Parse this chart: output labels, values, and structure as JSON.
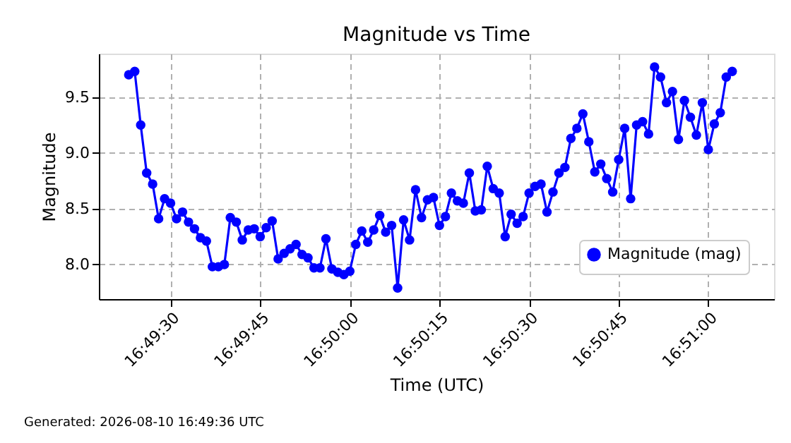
{
  "chart_data": {
    "type": "line",
    "title": "Magnitude vs Time",
    "xlabel": "Time (UTC)",
    "ylabel": "Magnitude",
    "annotations": [
      "Generated: 2026-08-10 16:49:36 UTC"
    ],
    "x": [
      "2026-08-10T16:49:23",
      "2026-08-10T16:49:24",
      "2026-08-10T16:49:25",
      "2026-08-10T16:49:26",
      "2026-08-10T16:49:27",
      "2026-08-10T16:49:28",
      "2026-08-10T16:49:29",
      "2026-08-10T16:49:30",
      "2026-08-10T16:49:31",
      "2026-08-10T16:49:32",
      "2026-08-10T16:49:33",
      "2026-08-10T16:49:34",
      "2026-08-10T16:49:35",
      "2026-08-10T16:49:36",
      "2026-08-10T16:49:37",
      "2026-08-10T16:49:38",
      "2026-08-10T16:49:39",
      "2026-08-10T16:49:40",
      "2026-08-10T16:49:41",
      "2026-08-10T16:49:42",
      "2026-08-10T16:49:43",
      "2026-08-10T16:49:44",
      "2026-08-10T16:49:45",
      "2026-08-10T16:49:46",
      "2026-08-10T16:49:47",
      "2026-08-10T16:49:48",
      "2026-08-10T16:49:49",
      "2026-08-10T16:49:50",
      "2026-08-10T16:49:51",
      "2026-08-10T16:49:52",
      "2026-08-10T16:49:53",
      "2026-08-10T16:49:54",
      "2026-08-10T16:49:55",
      "2026-08-10T16:49:56",
      "2026-08-10T16:49:57",
      "2026-08-10T16:49:58",
      "2026-08-10T16:49:59",
      "2026-08-10T16:50:00",
      "2026-08-10T16:50:01",
      "2026-08-10T16:50:02",
      "2026-08-10T16:50:03",
      "2026-08-10T16:50:04",
      "2026-08-10T16:50:05",
      "2026-08-10T16:50:06",
      "2026-08-10T16:50:07",
      "2026-08-10T16:50:08",
      "2026-08-10T16:50:09",
      "2026-08-10T16:50:10",
      "2026-08-10T16:50:11",
      "2026-08-10T16:50:12",
      "2026-08-10T16:50:13",
      "2026-08-10T16:50:14",
      "2026-08-10T16:50:15",
      "2026-08-10T16:50:16",
      "2026-08-10T16:50:17",
      "2026-08-10T16:50:18",
      "2026-08-10T16:50:19",
      "2026-08-10T16:50:20",
      "2026-08-10T16:50:21",
      "2026-08-10T16:50:22",
      "2026-08-10T16:50:23",
      "2026-08-10T16:50:24",
      "2026-08-10T16:50:25",
      "2026-08-10T16:50:26",
      "2026-08-10T16:50:27",
      "2026-08-10T16:50:28",
      "2026-08-10T16:50:29",
      "2026-08-10T16:50:30",
      "2026-08-10T16:50:31",
      "2026-08-10T16:50:32",
      "2026-08-10T16:50:33",
      "2026-08-10T16:50:34",
      "2026-08-10T16:50:35",
      "2026-08-10T16:50:36",
      "2026-08-10T16:50:37",
      "2026-08-10T16:50:38",
      "2026-08-10T16:50:39",
      "2026-08-10T16:50:40",
      "2026-08-10T16:50:41",
      "2026-08-10T16:50:42",
      "2026-08-10T16:50:43",
      "2026-08-10T16:50:44",
      "2026-08-10T16:50:45",
      "2026-08-10T16:50:46",
      "2026-08-10T16:50:47",
      "2026-08-10T16:50:48",
      "2026-08-10T16:50:49",
      "2026-08-10T16:50:50",
      "2026-08-10T16:50:51",
      "2026-08-10T16:50:52",
      "2026-08-10T16:50:53",
      "2026-08-10T16:50:54",
      "2026-08-10T16:50:55",
      "2026-08-10T16:50:56",
      "2026-08-10T16:50:57",
      "2026-08-10T16:50:58",
      "2026-08-10T16:50:59",
      "2026-08-10T16:51:00",
      "2026-08-10T16:51:01",
      "2026-08-10T16:51:02",
      "2026-08-10T16:51:03",
      "2026-08-10T16:51:04"
    ],
    "series": [
      {
        "name": "Magnitude (mag)",
        "color": "#0000ff",
        "values": [
          9.7,
          9.73,
          9.25,
          8.82,
          8.72,
          8.41,
          8.59,
          8.55,
          8.41,
          8.47,
          8.38,
          8.32,
          8.24,
          8.21,
          7.98,
          7.98,
          8.0,
          8.42,
          8.38,
          8.22,
          8.31,
          8.32,
          8.25,
          8.33,
          8.39,
          8.05,
          8.1,
          8.14,
          8.18,
          8.09,
          8.06,
          7.97,
          7.97,
          8.23,
          7.96,
          7.93,
          7.91,
          7.94,
          8.18,
          8.3,
          8.2,
          8.31,
          8.44,
          8.29,
          8.35,
          7.79,
          8.4,
          8.22,
          8.67,
          8.42,
          8.58,
          8.6,
          8.35,
          8.43,
          8.64,
          8.57,
          8.55,
          8.82,
          8.48,
          8.49,
          8.88,
          8.68,
          8.64,
          8.25,
          8.45,
          8.37,
          8.43,
          8.64,
          8.7,
          8.72,
          8.47,
          8.65,
          8.82,
          8.87,
          9.13,
          9.22,
          9.35,
          9.1,
          8.83,
          8.9,
          8.77,
          8.65,
          8.94,
          9.22,
          8.59,
          9.25,
          9.28,
          9.17,
          9.77,
          9.68,
          9.45,
          9.55,
          9.12,
          9.47,
          9.32,
          9.16,
          9.45,
          9.03,
          9.26,
          9.36,
          9.68,
          9.73
        ]
      }
    ],
    "xlim": [
      "2026-08-10T16:49:18",
      "2026-08-10T16:51:11"
    ],
    "xticks": [
      {
        "value": "2026-08-10T16:49:30",
        "label": "16:49:30"
      },
      {
        "value": "2026-08-10T16:49:45",
        "label": "16:49:45"
      },
      {
        "value": "2026-08-10T16:50:00",
        "label": "16:50:00"
      },
      {
        "value": "2026-08-10T16:50:15",
        "label": "16:50:15"
      },
      {
        "value": "2026-08-10T16:50:30",
        "label": "16:50:30"
      },
      {
        "value": "2026-08-10T16:50:45",
        "label": "16:50:45"
      },
      {
        "value": "2026-08-10T16:51:00",
        "label": "16:51:00"
      }
    ],
    "ylim": [
      7.69,
      9.89
    ],
    "yticks": [
      {
        "value": 8,
        "label": "8.0"
      },
      {
        "value": 8.5,
        "label": "8.5"
      },
      {
        "value": 9,
        "label": "9.0"
      },
      {
        "value": 9.5,
        "label": "9.5"
      }
    ],
    "grid": true,
    "marker": "circle",
    "legend": "bottom right"
  }
}
